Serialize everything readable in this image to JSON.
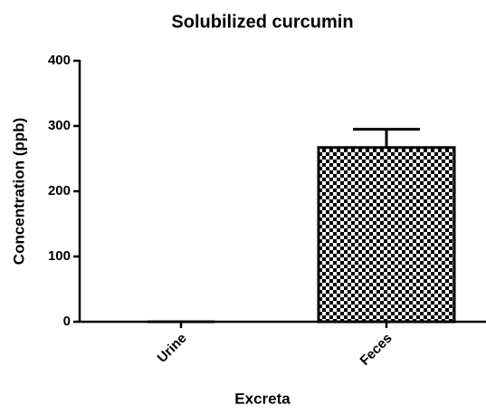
{
  "chart_data": {
    "type": "bar",
    "title": "Solubilized curcumin",
    "x_label": "Excreta",
    "y_label": "Concentration (ppb)",
    "categories": [
      "Urine",
      "Feces"
    ],
    "values": [
      0,
      267
    ],
    "errors": [
      0,
      28
    ],
    "color": "#000000",
    "pattern": "checkered",
    "ylim": [
      0,
      400
    ],
    "yticks": [
      0,
      100,
      200,
      300,
      400
    ],
    "grid": false
  }
}
